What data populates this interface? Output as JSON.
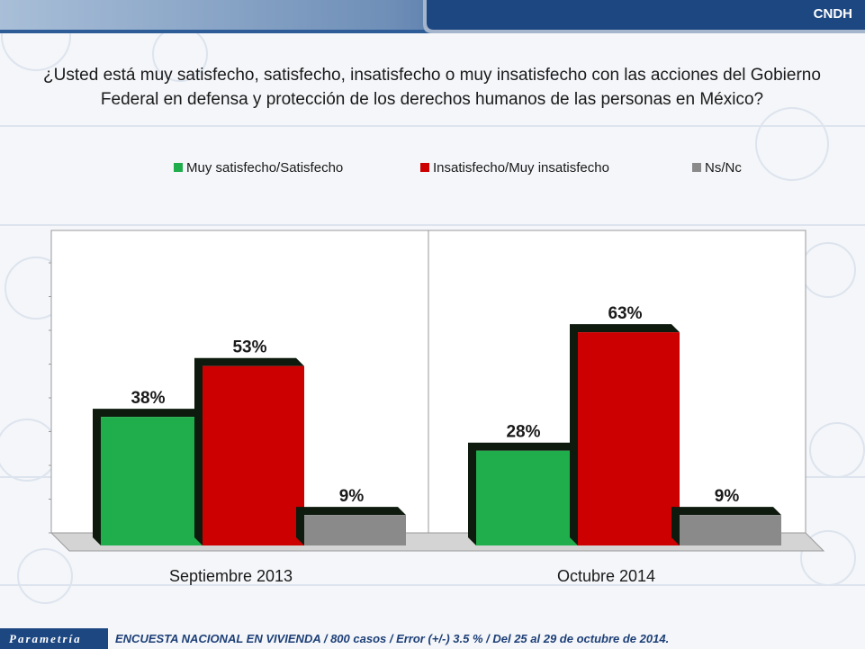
{
  "header": {
    "client": "CNDH",
    "watermark": "Parametría"
  },
  "question": {
    "line1": "¿Usted está muy satisfecho, satisfecho, insatisfecho o muy insatisfecho con las acciones del Gobierno",
    "line2": "Federal en defensa y protección de los derechos humanos de las personas en México?"
  },
  "colors": {
    "green": "#1fae4b",
    "red": "#cc0000",
    "gray": "#8a8a8a"
  },
  "chart_data": {
    "type": "bar",
    "categories": [
      "Septiembre 2013",
      "Octubre 2014"
    ],
    "series": [
      {
        "name": "Muy satisfecho/Satisfecho",
        "values": [
          38,
          28
        ],
        "color": "#1fae4b"
      },
      {
        "name": "Insatisfecho/Muy insatisfecho",
        "values": [
          53,
          63
        ],
        "color": "#cc0000"
      },
      {
        "name": "Ns/Nc",
        "values": [
          9,
          9
        ],
        "color": "#8a8a8a"
      }
    ],
    "value_suffix": "%",
    "ylim": [
      0,
      80
    ],
    "grid": false,
    "legend_position": "top"
  },
  "footer": {
    "logo": "Parametría",
    "text": "ENCUESTA NACIONAL EN VIVIENDA / 800 casos / Error (+/-) 3.5 % / Del 25 al 29 de octubre de 2014."
  }
}
